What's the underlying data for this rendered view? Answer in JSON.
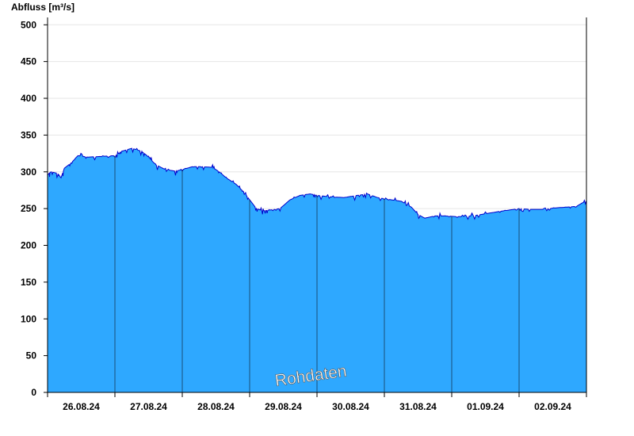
{
  "chart_data": {
    "type": "area",
    "ylabel": "Abfluss [m³/s]",
    "ylim": [
      0,
      510
    ],
    "y_ticks": [
      0,
      50,
      100,
      150,
      200,
      250,
      300,
      350,
      400,
      450,
      500
    ],
    "x_range_days": [
      0,
      8
    ],
    "x_ticks": [
      "26.08.24",
      "27.08.24",
      "28.08.24",
      "29.08.24",
      "30.08.24",
      "31.08.24",
      "01.09.24",
      "02.09.24"
    ],
    "grid": true,
    "series": [
      {
        "name": "",
        "color": "#2ea8ff",
        "line_color": "#0000cc",
        "points": [
          [
            0.0,
            296
          ],
          [
            0.05,
            300
          ],
          [
            0.15,
            298
          ],
          [
            0.2,
            292
          ],
          [
            0.25,
            305
          ],
          [
            0.35,
            312
          ],
          [
            0.45,
            322
          ],
          [
            0.6,
            320
          ],
          [
            0.8,
            321
          ],
          [
            1.0,
            322
          ],
          [
            1.1,
            328
          ],
          [
            1.25,
            332
          ],
          [
            1.4,
            328
          ],
          [
            1.5,
            320
          ],
          [
            1.6,
            310
          ],
          [
            1.75,
            303
          ],
          [
            1.9,
            301
          ],
          [
            2.0,
            303
          ],
          [
            2.15,
            307
          ],
          [
            2.3,
            307
          ],
          [
            2.45,
            306
          ],
          [
            2.55,
            300
          ],
          [
            2.65,
            292
          ],
          [
            2.8,
            283
          ],
          [
            2.9,
            274
          ],
          [
            3.0,
            262
          ],
          [
            3.1,
            250
          ],
          [
            3.2,
            247
          ],
          [
            3.3,
            248
          ],
          [
            3.45,
            250
          ],
          [
            3.6,
            262
          ],
          [
            3.75,
            268
          ],
          [
            3.9,
            270
          ],
          [
            4.0,
            268
          ],
          [
            4.2,
            266
          ],
          [
            4.4,
            265
          ],
          [
            4.6,
            268
          ],
          [
            4.75,
            270
          ],
          [
            4.9,
            265
          ],
          [
            5.1,
            262
          ],
          [
            5.25,
            260
          ],
          [
            5.4,
            252
          ],
          [
            5.5,
            242
          ],
          [
            5.6,
            237
          ],
          [
            5.75,
            240
          ],
          [
            5.9,
            240
          ],
          [
            6.1,
            239
          ],
          [
            6.3,
            240
          ],
          [
            6.5,
            243
          ],
          [
            6.7,
            246
          ],
          [
            6.85,
            248
          ],
          [
            7.0,
            250
          ],
          [
            7.15,
            249
          ],
          [
            7.35,
            249
          ],
          [
            7.55,
            251
          ],
          [
            7.7,
            252
          ],
          [
            7.85,
            253
          ],
          [
            8.0,
            261
          ]
        ]
      }
    ],
    "watermark": "Rohdaten"
  }
}
